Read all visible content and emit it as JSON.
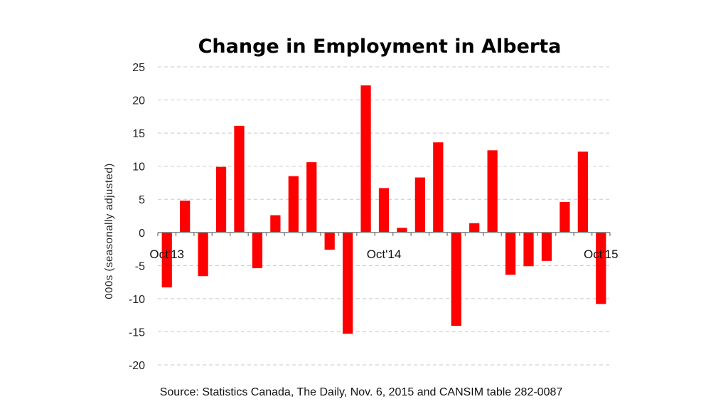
{
  "chart_data": {
    "type": "bar",
    "title": "Change in Employment in Alberta",
    "ylabel": "000s (seasonally adjusted)",
    "xlabel": "",
    "source": "Source: Statistics Canada, The Daily, Nov. 6, 2015 and CANSIM table 282-0087",
    "ylim": [
      -20,
      25
    ],
    "yticks": [
      25,
      20,
      15,
      10,
      5,
      0,
      -5,
      -10,
      -15,
      -20
    ],
    "grid": true,
    "bar_color": "#ff0000",
    "categories": [
      "Oct'13",
      "",
      "",
      "",
      "",
      "",
      "",
      "",
      "",
      "",
      "",
      "",
      "Oct'14",
      "",
      "",
      "",
      "",
      "",
      "",
      "",
      "",
      "",
      "",
      "",
      "Oct'15"
    ],
    "values": [
      -8.3,
      4.8,
      -6.6,
      9.9,
      16.1,
      -5.4,
      2.6,
      8.5,
      10.6,
      -2.6,
      -15.3,
      22.2,
      6.7,
      0.7,
      8.3,
      13.6,
      -14.1,
      1.4,
      12.4,
      -6.4,
      -5.1,
      -4.3,
      4.6,
      12.2,
      -10.8
    ]
  }
}
